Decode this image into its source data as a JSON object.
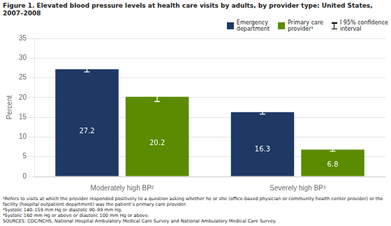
{
  "chart_data": {
    "type": "bar",
    "title": "Figure 1. Elevated blood pressure levels at health care visits by adults, by provider type: United States, 2007–2008",
    "ylabel": "Percent",
    "categories": [
      "Moderately high BP²",
      "Severely high BP³"
    ],
    "series": [
      {
        "name": "Emergency\ndepartment",
        "color": "#1F3864",
        "values": [
          27.2,
          16.3
        ],
        "errors": [
          0.7,
          0.5
        ]
      },
      {
        "name": "Primary care\nprovider¹",
        "color": "#5B8B00",
        "values": [
          20.2,
          6.8
        ],
        "errors": [
          1.2,
          0.4
        ]
      }
    ],
    "error_legend": "I 95% confidence\ninterval",
    "ylim": [
      0,
      35
    ],
    "yticks": [
      0,
      5,
      10,
      15,
      20,
      25,
      30,
      35
    ],
    "grid": true,
    "legend": "upper right",
    "data_labels": true,
    "annotations": [
      "¹Refers to visits at which the provider responded positively to a question asking whether he or she (office-based physician or community health center provider) or the facility (hospital outpatient department) was the patient’s primary care provider.",
      "²Systolic 140–159 mm Hg or diastolic 90–99 mm Hg.",
      "³Systolic 160 mm Hg or above or diastolic 100 mm Hg or above.",
      "SOURCES: CDC/NCHS, National Hospital Ambulatory Medical Care Survey and National Ambulatory Medical Care Survey."
    ]
  }
}
